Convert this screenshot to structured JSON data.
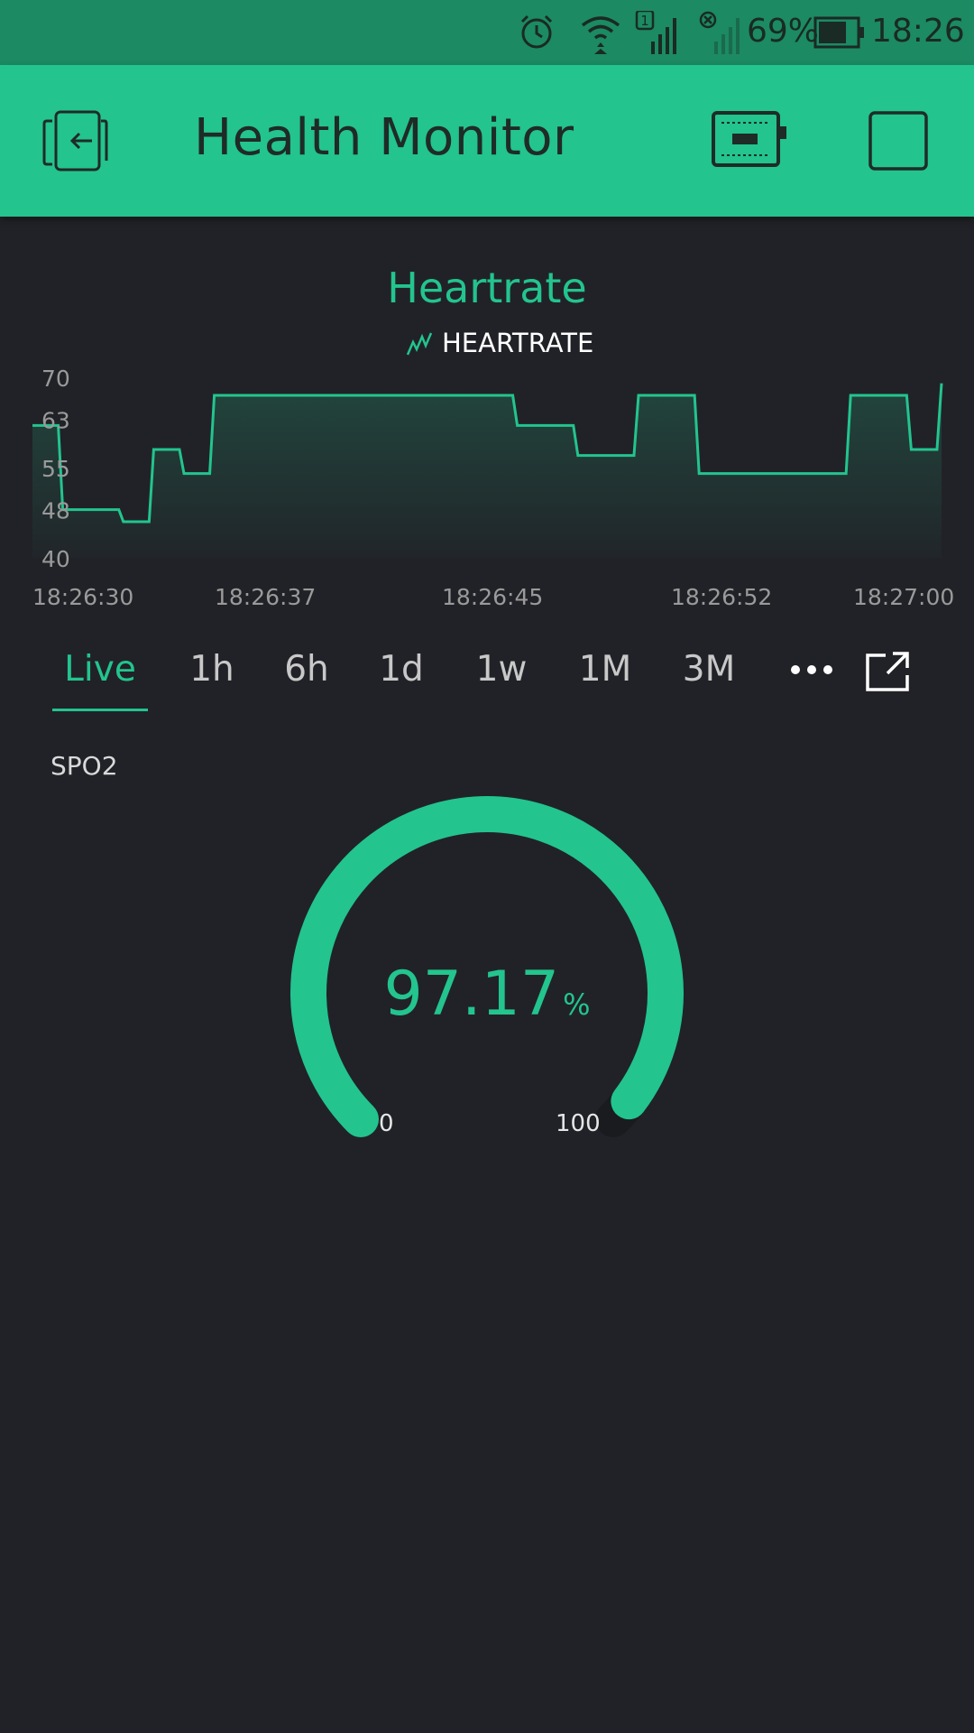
{
  "status_bar": {
    "battery_percent": "69%",
    "time": "18:26",
    "sim_slot": "1",
    "icons": [
      "alarm-icon",
      "wifi-icon",
      "signal-sim1-icon",
      "signal-sim2-nosignal-icon",
      "battery-icon"
    ]
  },
  "app_bar": {
    "title": "Health Monitor",
    "left_icon": "exit-icon",
    "right_icons": [
      "device-board-icon",
      "stop-square-icon"
    ],
    "background": "#23c48e"
  },
  "colors": {
    "accent": "#23c48e",
    "background": "#212227",
    "status_bar": "#1c8a63"
  },
  "chart": {
    "title": "Heartrate",
    "legend_label": "HEARTRATE"
  },
  "chart_data": {
    "type": "area",
    "title": "Heartrate",
    "series": [
      {
        "name": "HEARTRATE",
        "x": [
          "18:26:30",
          "18:26:31",
          "18:26:32",
          "18:26:33",
          "18:26:34",
          "18:26:35",
          "18:26:36",
          "18:26:37",
          "18:26:38",
          "18:26:39",
          "18:26:40",
          "18:26:41",
          "18:26:42",
          "18:26:43",
          "18:26:44",
          "18:26:45",
          "18:26:46",
          "18:26:47",
          "18:26:48",
          "18:26:49",
          "18:26:50",
          "18:26:51",
          "18:26:52",
          "18:26:53",
          "18:26:54",
          "18:26:55",
          "18:26:56",
          "18:26:57",
          "18:26:58",
          "18:26:59",
          "18:27:00"
        ],
        "values": [
          62,
          48,
          48,
          46,
          58,
          54,
          67,
          67,
          67,
          67,
          67,
          67,
          67,
          67,
          67,
          67,
          62,
          62,
          57,
          57,
          67,
          67,
          54,
          54,
          54,
          54,
          54,
          67,
          67,
          58,
          69
        ]
      }
    ],
    "x_tick_labels": [
      "18:26:30",
      "18:26:37",
      "18:26:45",
      "18:26:52",
      "18:27:00"
    ],
    "y_tick_labels": [
      "70",
      "63",
      "55",
      "48",
      "40"
    ],
    "ylim": [
      40,
      70
    ],
    "grid": false,
    "legend_placement": "top-center"
  },
  "tabs": {
    "items": [
      {
        "label": "Live",
        "active": true
      },
      {
        "label": "1h",
        "active": false
      },
      {
        "label": "6h",
        "active": false
      },
      {
        "label": "1d",
        "active": false
      },
      {
        "label": "1w",
        "active": false
      },
      {
        "label": "1M",
        "active": false
      },
      {
        "label": "3M",
        "active": false
      }
    ],
    "more_icon": "more-dots-icon",
    "export_icon": "open-external-icon"
  },
  "gauge": {
    "label": "SPO2",
    "value": "97.17",
    "unit": "%",
    "value_numeric": 97.17,
    "min": "0",
    "max": "100",
    "fill_fraction": 0.9717
  }
}
